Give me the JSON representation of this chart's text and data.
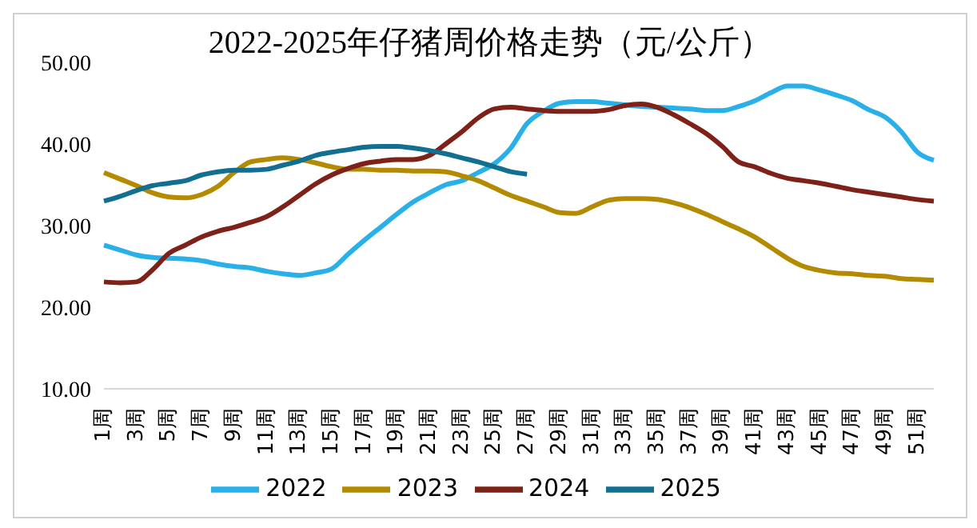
{
  "chart_data": {
    "type": "line",
    "title": "2022-2025年仔猪周价格走势（元/公斤）",
    "categories": [
      "1周",
      null,
      "3周",
      null,
      "5周",
      null,
      "7周",
      null,
      "9周",
      null,
      "11周",
      null,
      "13周",
      null,
      "15周",
      null,
      "17周",
      null,
      "19周",
      null,
      "21周",
      null,
      "23周",
      null,
      "25周",
      null,
      "27周",
      null,
      "29周",
      null,
      "31周",
      null,
      "33周",
      null,
      "35周",
      null,
      "37周",
      null,
      "39周",
      null,
      "41周",
      null,
      "43周",
      null,
      "45周",
      null,
      "47周",
      null,
      "49周",
      null,
      "51周",
      null
    ],
    "series": [
      {
        "name": "2022",
        "color": "#29b0e8",
        "values": [
          27.6,
          27,
          26.4,
          26.1,
          26,
          25.9,
          25.7,
          25.3,
          25,
          24.8,
          24.4,
          24.1,
          23.9,
          24.2,
          24.7,
          26.5,
          28.2,
          29.8,
          31.4,
          32.9,
          34,
          35,
          35.5,
          36.5,
          37.6,
          39.5,
          42.5,
          44,
          45,
          45.2,
          45.2,
          45,
          44.8,
          44.6,
          44.5,
          44.4,
          44.3,
          44.1,
          44.1,
          44.6,
          45.3,
          46.3,
          47.1,
          47.1,
          46.6,
          46,
          45.3,
          44.2,
          43.3,
          41.5,
          39,
          38
        ]
      },
      {
        "name": "2023",
        "color": "#b38a00",
        "values": [
          36.5,
          35.7,
          34.9,
          34,
          33.5,
          33.4,
          33.8,
          34.8,
          36.5,
          37.8,
          38.1,
          38.3,
          38.1,
          37.7,
          37.2,
          36.9,
          36.9,
          36.8,
          36.8,
          36.7,
          36.7,
          36.6,
          36.1,
          35.5,
          34.6,
          33.7,
          33,
          32.3,
          31.6,
          31.5,
          32.3,
          33.1,
          33.3,
          33.3,
          33.2,
          32.8,
          32.2,
          31.4,
          30.5,
          29.6,
          28.6,
          27.3,
          26,
          25,
          24.5,
          24.2,
          24.1,
          23.9,
          23.8,
          23.5,
          23.4,
          23.3
        ]
      },
      {
        "name": "2024",
        "color": "#7e2119",
        "values": [
          23.1,
          23,
          23.1,
          24.6,
          26.6,
          27.6,
          28.6,
          29.3,
          29.8,
          30.4,
          31.1,
          32.3,
          33.7,
          35.1,
          36.2,
          37,
          37.6,
          37.9,
          38.1,
          38.1,
          38.6,
          40,
          41.5,
          43.2,
          44.3,
          44.5,
          44.3,
          44.1,
          44,
          44,
          44,
          44.2,
          44.7,
          44.9,
          44.5,
          43.6,
          42.5,
          41.3,
          39.7,
          37.8,
          37.2,
          36.4,
          35.8,
          35.5,
          35.2,
          34.8,
          34.4,
          34.1,
          33.8,
          33.5,
          33.2,
          33
        ]
      },
      {
        "name": "2025",
        "color": "#136f92",
        "values": [
          33,
          33.6,
          34.3,
          34.9,
          35.2,
          35.5,
          36.2,
          36.6,
          36.8,
          36.8,
          36.9,
          37.4,
          37.9,
          38.6,
          39,
          39.3,
          39.6,
          39.7,
          39.7,
          39.5,
          39.2,
          38.8,
          38.3,
          37.8,
          37.2,
          36.6,
          36.3,
          null,
          null,
          null,
          null,
          null,
          null,
          null,
          null,
          null,
          null,
          null,
          null,
          null,
          null,
          null,
          null,
          null,
          null,
          null,
          null,
          null,
          null,
          null,
          null,
          null
        ]
      }
    ],
    "ylim": [
      10,
      50
    ],
    "yticks": [
      {
        "value": 10,
        "label": "10.00"
      },
      {
        "value": 20,
        "label": "20.00"
      },
      {
        "value": 30,
        "label": "30.00"
      },
      {
        "value": 40,
        "label": "40.00"
      },
      {
        "value": 50,
        "label": "50.00"
      }
    ],
    "grid": false,
    "legend": "bottom",
    "marker": "none",
    "line_style": "solid"
  }
}
